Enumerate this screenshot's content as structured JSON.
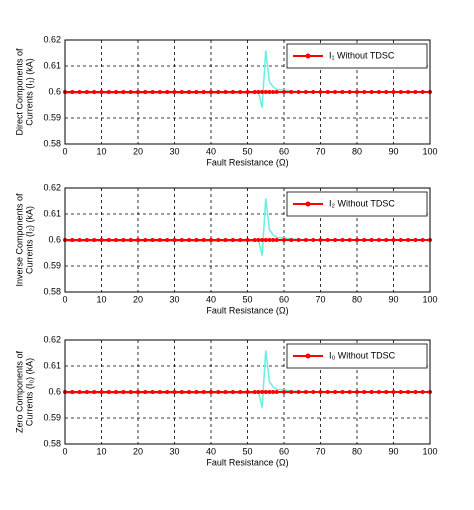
{
  "chart_data": [
    {
      "type": "line",
      "xlabel": "Fault Resistance (Ω)",
      "ylabel": [
        "Direct Components of",
        "Currents (I₁) (kA)"
      ],
      "x": [
        0,
        2,
        4,
        6,
        8,
        10,
        12,
        14,
        16,
        18,
        20,
        22,
        24,
        26,
        28,
        30,
        32,
        34,
        36,
        38,
        40,
        42,
        44,
        46,
        48,
        50,
        52,
        53,
        54,
        55,
        56,
        57,
        58,
        60,
        62,
        64,
        66,
        68,
        70,
        72,
        74,
        76,
        78,
        80,
        82,
        84,
        86,
        88,
        90,
        92,
        94,
        96,
        98,
        100
      ],
      "series": [
        {
          "name": "I₁ Without TDSC",
          "color": "#ff0000",
          "values": [
            0.6,
            0.6,
            0.6,
            0.6,
            0.6,
            0.6,
            0.6,
            0.6,
            0.6,
            0.6,
            0.6,
            0.6,
            0.6,
            0.6,
            0.6,
            0.6,
            0.6,
            0.6,
            0.6,
            0.6,
            0.6,
            0.6,
            0.6,
            0.6,
            0.6,
            0.6,
            0.6,
            0.6,
            0.6,
            0.6,
            0.6,
            0.6,
            0.6,
            0.6,
            0.6,
            0.6,
            0.6,
            0.6,
            0.6,
            0.6,
            0.6,
            0.6,
            0.6,
            0.6,
            0.6,
            0.6,
            0.6,
            0.6,
            0.6,
            0.6,
            0.6,
            0.6,
            0.6,
            0.6
          ]
        },
        {
          "color": "#66f0e0",
          "values": [
            0.5995,
            0.5995,
            0.5995,
            0.5995,
            0.5995,
            0.5995,
            0.5995,
            0.5995,
            0.5995,
            0.5995,
            0.5995,
            0.5995,
            0.5995,
            0.5995,
            0.5995,
            0.5995,
            0.5995,
            0.5995,
            0.5995,
            0.5995,
            0.5995,
            0.5995,
            0.5995,
            0.5995,
            0.5995,
            0.5995,
            0.5995,
            0.6,
            0.594,
            0.616,
            0.604,
            0.602,
            0.601,
            0.6008,
            0.6004,
            0.6002,
            0.6,
            0.6,
            0.6,
            0.6,
            0.6,
            0.6,
            0.6,
            0.6,
            0.6,
            0.6,
            0.6,
            0.6,
            0.6,
            0.6,
            0.6,
            0.6,
            0.6,
            0.6
          ]
        }
      ],
      "xlim": [
        0,
        100
      ],
      "xticks": [
        0,
        10,
        20,
        30,
        40,
        50,
        60,
        70,
        80,
        90,
        100
      ],
      "ylim": [
        0.58,
        0.62
      ],
      "yticks": [
        0.58,
        0.59,
        0.6,
        0.61,
        0.62
      ],
      "grid": true,
      "legend": "upper right"
    },
    {
      "type": "line",
      "xlabel": "Fault Resistance (Ω)",
      "ylabel": [
        "Inverse Components of",
        "Currents (I₂) (kA)"
      ],
      "x": [
        0,
        2,
        4,
        6,
        8,
        10,
        12,
        14,
        16,
        18,
        20,
        22,
        24,
        26,
        28,
        30,
        32,
        34,
        36,
        38,
        40,
        42,
        44,
        46,
        48,
        50,
        52,
        53,
        54,
        55,
        56,
        57,
        58,
        60,
        62,
        64,
        66,
        68,
        70,
        72,
        74,
        76,
        78,
        80,
        82,
        84,
        86,
        88,
        90,
        92,
        94,
        96,
        98,
        100
      ],
      "series": [
        {
          "name": "I₂ Without TDSC",
          "color": "#ff0000",
          "values": [
            0.6,
            0.6,
            0.6,
            0.6,
            0.6,
            0.6,
            0.6,
            0.6,
            0.6,
            0.6,
            0.6,
            0.6,
            0.6,
            0.6,
            0.6,
            0.6,
            0.6,
            0.6,
            0.6,
            0.6,
            0.6,
            0.6,
            0.6,
            0.6,
            0.6,
            0.6,
            0.6,
            0.6,
            0.6,
            0.6,
            0.6,
            0.6,
            0.6,
            0.6,
            0.6,
            0.6,
            0.6,
            0.6,
            0.6,
            0.6,
            0.6,
            0.6,
            0.6,
            0.6,
            0.6,
            0.6,
            0.6,
            0.6,
            0.6,
            0.6,
            0.6,
            0.6,
            0.6,
            0.6
          ]
        },
        {
          "color": "#66f0e0",
          "values": [
            0.5995,
            0.5995,
            0.5995,
            0.5995,
            0.5995,
            0.5995,
            0.5995,
            0.5995,
            0.5995,
            0.5995,
            0.5995,
            0.5995,
            0.5995,
            0.5995,
            0.5995,
            0.5995,
            0.5995,
            0.5995,
            0.5995,
            0.5995,
            0.5995,
            0.5995,
            0.5995,
            0.5995,
            0.5995,
            0.5995,
            0.5995,
            0.6,
            0.594,
            0.616,
            0.604,
            0.602,
            0.601,
            0.6008,
            0.6004,
            0.6002,
            0.6,
            0.6,
            0.6,
            0.6,
            0.6,
            0.6,
            0.6,
            0.6,
            0.6,
            0.6,
            0.6,
            0.6,
            0.6,
            0.6,
            0.6,
            0.6,
            0.6,
            0.6
          ]
        }
      ],
      "xlim": [
        0,
        100
      ],
      "xticks": [
        0,
        10,
        20,
        30,
        40,
        50,
        60,
        70,
        80,
        90,
        100
      ],
      "ylim": [
        0.58,
        0.62
      ],
      "yticks": [
        0.58,
        0.59,
        0.6,
        0.61,
        0.62
      ],
      "grid": true,
      "legend": "upper right"
    },
    {
      "type": "line",
      "xlabel": "Fault Resistance (Ω)",
      "ylabel": [
        "Zero Components of",
        "Currents (I₀) (kA)"
      ],
      "x": [
        0,
        2,
        4,
        6,
        8,
        10,
        12,
        14,
        16,
        18,
        20,
        22,
        24,
        26,
        28,
        30,
        32,
        34,
        36,
        38,
        40,
        42,
        44,
        46,
        48,
        50,
        52,
        53,
        54,
        55,
        56,
        57,
        58,
        60,
        62,
        64,
        66,
        68,
        70,
        72,
        74,
        76,
        78,
        80,
        82,
        84,
        86,
        88,
        90,
        92,
        94,
        96,
        98,
        100
      ],
      "series": [
        {
          "name": "I₀ Without TDSC",
          "color": "#ff0000",
          "values": [
            0.6,
            0.6,
            0.6,
            0.6,
            0.6,
            0.6,
            0.6,
            0.6,
            0.6,
            0.6,
            0.6,
            0.6,
            0.6,
            0.6,
            0.6,
            0.6,
            0.6,
            0.6,
            0.6,
            0.6,
            0.6,
            0.6,
            0.6,
            0.6,
            0.6,
            0.6,
            0.6,
            0.6,
            0.6,
            0.6,
            0.6,
            0.6,
            0.6,
            0.6,
            0.6,
            0.6,
            0.6,
            0.6,
            0.6,
            0.6,
            0.6,
            0.6,
            0.6,
            0.6,
            0.6,
            0.6,
            0.6,
            0.6,
            0.6,
            0.6,
            0.6,
            0.6,
            0.6,
            0.6
          ]
        },
        {
          "color": "#66f0e0",
          "values": [
            0.5995,
            0.5995,
            0.5995,
            0.5995,
            0.5995,
            0.5995,
            0.5995,
            0.5995,
            0.5995,
            0.5995,
            0.5995,
            0.5995,
            0.5995,
            0.5995,
            0.5995,
            0.5995,
            0.5995,
            0.5995,
            0.5995,
            0.5995,
            0.5995,
            0.5995,
            0.5995,
            0.5995,
            0.5995,
            0.5995,
            0.5995,
            0.6,
            0.594,
            0.616,
            0.604,
            0.602,
            0.601,
            0.6008,
            0.6004,
            0.6002,
            0.6,
            0.6,
            0.6,
            0.6,
            0.6,
            0.6,
            0.6,
            0.6,
            0.6,
            0.6,
            0.6,
            0.6,
            0.6,
            0.6,
            0.6,
            0.6,
            0.6,
            0.6
          ]
        }
      ],
      "xlim": [
        0,
        100
      ],
      "xticks": [
        0,
        10,
        20,
        30,
        40,
        50,
        60,
        70,
        80,
        90,
        100
      ],
      "ylim": [
        0.58,
        0.62
      ],
      "yticks": [
        0.58,
        0.59,
        0.6,
        0.61,
        0.62
      ],
      "grid": true,
      "legend": "upper right"
    }
  ]
}
